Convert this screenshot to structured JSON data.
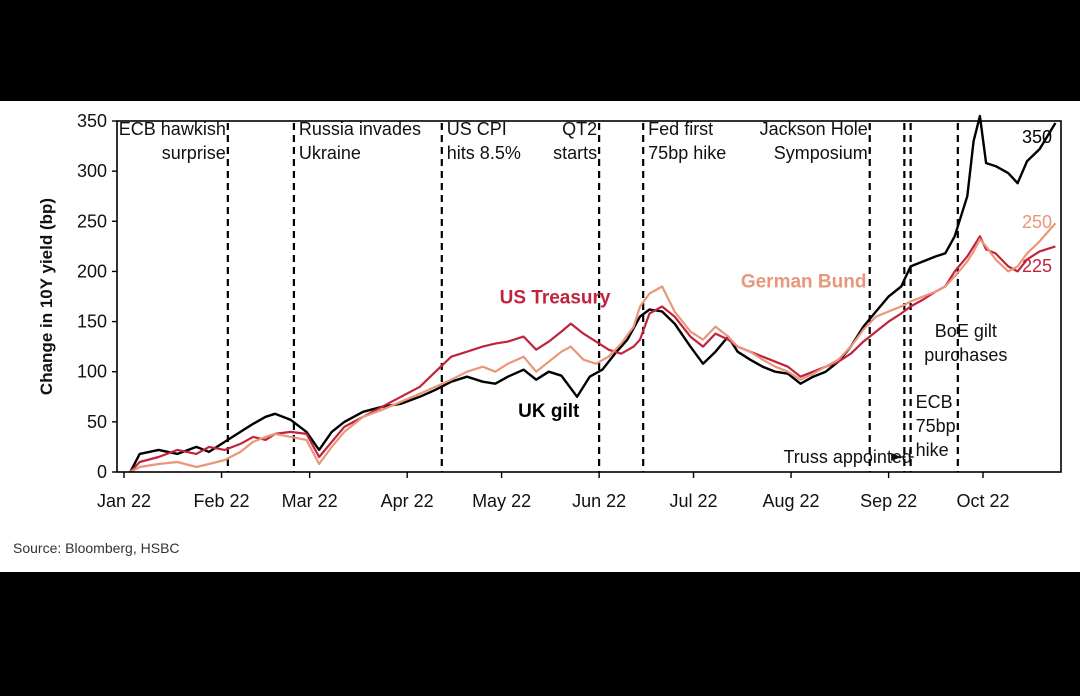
{
  "chart_data": {
    "type": "line",
    "title": "",
    "xlabel": "",
    "ylabel": "Change in 10Y yield (bp)",
    "xlim": [
      "2022-01-01",
      "2022-10-30"
    ],
    "ylim": [
      0,
      350
    ],
    "y_ticks": [
      0,
      50,
      100,
      150,
      200,
      250,
      300,
      350
    ],
    "x_ticks": [
      {
        "date": "2022-01-01",
        "label": "Jan 22"
      },
      {
        "date": "2022-02-01",
        "label": "Feb 22"
      },
      {
        "date": "2022-03-01",
        "label": "Mar 22"
      },
      {
        "date": "2022-04-01",
        "label": "Apr 22"
      },
      {
        "date": "2022-05-01",
        "label": "May 22"
      },
      {
        "date": "2022-06-01",
        "label": "Jun 22"
      },
      {
        "date": "2022-07-01",
        "label": "Jul 22"
      },
      {
        "date": "2022-08-01",
        "label": "Aug 22"
      },
      {
        "date": "2022-09-01",
        "label": "Sep 22"
      },
      {
        "date": "2022-10-01",
        "label": "Oct 22"
      }
    ],
    "grid": false,
    "legend": "inline labels",
    "series": [
      {
        "name": "UK gilt",
        "color": "#000000",
        "end_label": "350",
        "points": [
          [
            "2022-01-03",
            0
          ],
          [
            "2022-01-06",
            18
          ],
          [
            "2022-01-12",
            22
          ],
          [
            "2022-01-18",
            18
          ],
          [
            "2022-01-24",
            25
          ],
          [
            "2022-01-28",
            20
          ],
          [
            "2022-02-02",
            30
          ],
          [
            "2022-02-07",
            40
          ],
          [
            "2022-02-11",
            48
          ],
          [
            "2022-02-15",
            55
          ],
          [
            "2022-02-18",
            58
          ],
          [
            "2022-02-23",
            52
          ],
          [
            "2022-02-28",
            40
          ],
          [
            "2022-03-04",
            22
          ],
          [
            "2022-03-08",
            40
          ],
          [
            "2022-03-12",
            50
          ],
          [
            "2022-03-18",
            60
          ],
          [
            "2022-03-24",
            65
          ],
          [
            "2022-03-30",
            68
          ],
          [
            "2022-04-05",
            75
          ],
          [
            "2022-04-10",
            82
          ],
          [
            "2022-04-15",
            90
          ],
          [
            "2022-04-20",
            95
          ],
          [
            "2022-04-25",
            90
          ],
          [
            "2022-04-29",
            88
          ],
          [
            "2022-05-03",
            95
          ],
          [
            "2022-05-08",
            102
          ],
          [
            "2022-05-12",
            92
          ],
          [
            "2022-05-16",
            100
          ],
          [
            "2022-05-20",
            96
          ],
          [
            "2022-05-25",
            75
          ],
          [
            "2022-05-29",
            95
          ],
          [
            "2022-06-02",
            102
          ],
          [
            "2022-06-06",
            118
          ],
          [
            "2022-06-10",
            132
          ],
          [
            "2022-06-14",
            155
          ],
          [
            "2022-06-17",
            162
          ],
          [
            "2022-06-21",
            160
          ],
          [
            "2022-06-25",
            148
          ],
          [
            "2022-06-30",
            125
          ],
          [
            "2022-07-04",
            108
          ],
          [
            "2022-07-08",
            120
          ],
          [
            "2022-07-12",
            135
          ],
          [
            "2022-07-15",
            120
          ],
          [
            "2022-07-19",
            112
          ],
          [
            "2022-07-23",
            105
          ],
          [
            "2022-07-27",
            100
          ],
          [
            "2022-07-31",
            98
          ],
          [
            "2022-08-04",
            88
          ],
          [
            "2022-08-08",
            95
          ],
          [
            "2022-08-12",
            100
          ],
          [
            "2022-08-16",
            110
          ],
          [
            "2022-08-20",
            125
          ],
          [
            "2022-08-24",
            145
          ],
          [
            "2022-08-28",
            160
          ],
          [
            "2022-09-01",
            175
          ],
          [
            "2022-09-05",
            185
          ],
          [
            "2022-09-08",
            205
          ],
          [
            "2022-09-12",
            210
          ],
          [
            "2022-09-16",
            215
          ],
          [
            "2022-09-19",
            218
          ],
          [
            "2022-09-22",
            235
          ],
          [
            "2022-09-26",
            275
          ],
          [
            "2022-09-28",
            330
          ],
          [
            "2022-09-30",
            355
          ],
          [
            "2022-10-02",
            308
          ],
          [
            "2022-10-05",
            305
          ],
          [
            "2022-10-09",
            298
          ],
          [
            "2022-10-12",
            288
          ],
          [
            "2022-10-15",
            310
          ],
          [
            "2022-10-19",
            322
          ],
          [
            "2022-10-24",
            348
          ]
        ]
      },
      {
        "name": "US Treasury",
        "color": "#c0243c",
        "end_label": "225",
        "points": [
          [
            "2022-01-03",
            0
          ],
          [
            "2022-01-06",
            10
          ],
          [
            "2022-01-12",
            15
          ],
          [
            "2022-01-18",
            22
          ],
          [
            "2022-01-24",
            18
          ],
          [
            "2022-01-28",
            25
          ],
          [
            "2022-02-02",
            22
          ],
          [
            "2022-02-07",
            28
          ],
          [
            "2022-02-11",
            35
          ],
          [
            "2022-02-15",
            32
          ],
          [
            "2022-02-18",
            38
          ],
          [
            "2022-02-23",
            40
          ],
          [
            "2022-02-28",
            38
          ],
          [
            "2022-03-04",
            15
          ],
          [
            "2022-03-08",
            30
          ],
          [
            "2022-03-12",
            45
          ],
          [
            "2022-03-18",
            55
          ],
          [
            "2022-03-24",
            65
          ],
          [
            "2022-03-30",
            75
          ],
          [
            "2022-04-05",
            85
          ],
          [
            "2022-04-10",
            100
          ],
          [
            "2022-04-15",
            115
          ],
          [
            "2022-04-20",
            120
          ],
          [
            "2022-04-25",
            125
          ],
          [
            "2022-04-29",
            128
          ],
          [
            "2022-05-03",
            130
          ],
          [
            "2022-05-08",
            135
          ],
          [
            "2022-05-12",
            122
          ],
          [
            "2022-05-16",
            130
          ],
          [
            "2022-05-20",
            140
          ],
          [
            "2022-05-23",
            148
          ],
          [
            "2022-05-27",
            138
          ],
          [
            "2022-05-31",
            130
          ],
          [
            "2022-06-04",
            122
          ],
          [
            "2022-06-08",
            118
          ],
          [
            "2022-06-12",
            125
          ],
          [
            "2022-06-14",
            132
          ],
          [
            "2022-06-17",
            158
          ],
          [
            "2022-06-21",
            165
          ],
          [
            "2022-06-25",
            155
          ],
          [
            "2022-06-30",
            135
          ],
          [
            "2022-07-04",
            125
          ],
          [
            "2022-07-08",
            138
          ],
          [
            "2022-07-12",
            132
          ],
          [
            "2022-07-15",
            125
          ],
          [
            "2022-07-19",
            120
          ],
          [
            "2022-07-23",
            115
          ],
          [
            "2022-07-27",
            110
          ],
          [
            "2022-07-31",
            105
          ],
          [
            "2022-08-04",
            95
          ],
          [
            "2022-08-08",
            100
          ],
          [
            "2022-08-12",
            105
          ],
          [
            "2022-08-16",
            110
          ],
          [
            "2022-08-20",
            118
          ],
          [
            "2022-08-24",
            130
          ],
          [
            "2022-08-28",
            140
          ],
          [
            "2022-09-01",
            150
          ],
          [
            "2022-09-05",
            158
          ],
          [
            "2022-09-08",
            165
          ],
          [
            "2022-09-12",
            172
          ],
          [
            "2022-09-16",
            180
          ],
          [
            "2022-09-19",
            185
          ],
          [
            "2022-09-22",
            200
          ],
          [
            "2022-09-26",
            215
          ],
          [
            "2022-09-28",
            225
          ],
          [
            "2022-09-30",
            235
          ],
          [
            "2022-10-02",
            222
          ],
          [
            "2022-10-05",
            218
          ],
          [
            "2022-10-09",
            205
          ],
          [
            "2022-10-12",
            200
          ],
          [
            "2022-10-15",
            212
          ],
          [
            "2022-10-19",
            220
          ],
          [
            "2022-10-24",
            225
          ]
        ]
      },
      {
        "name": "German Bund",
        "color": "#e9967a",
        "end_label": "250",
        "points": [
          [
            "2022-01-03",
            0
          ],
          [
            "2022-01-06",
            5
          ],
          [
            "2022-01-12",
            8
          ],
          [
            "2022-01-18",
            10
          ],
          [
            "2022-01-24",
            5
          ],
          [
            "2022-01-28",
            8
          ],
          [
            "2022-02-02",
            12
          ],
          [
            "2022-02-07",
            20
          ],
          [
            "2022-02-11",
            30
          ],
          [
            "2022-02-15",
            35
          ],
          [
            "2022-02-18",
            38
          ],
          [
            "2022-02-23",
            35
          ],
          [
            "2022-02-28",
            32
          ],
          [
            "2022-03-04",
            8
          ],
          [
            "2022-03-08",
            25
          ],
          [
            "2022-03-12",
            40
          ],
          [
            "2022-03-18",
            55
          ],
          [
            "2022-03-24",
            62
          ],
          [
            "2022-03-30",
            70
          ],
          [
            "2022-04-05",
            78
          ],
          [
            "2022-04-10",
            85
          ],
          [
            "2022-04-15",
            92
          ],
          [
            "2022-04-20",
            100
          ],
          [
            "2022-04-25",
            105
          ],
          [
            "2022-04-29",
            100
          ],
          [
            "2022-05-03",
            108
          ],
          [
            "2022-05-08",
            115
          ],
          [
            "2022-05-12",
            100
          ],
          [
            "2022-05-16",
            110
          ],
          [
            "2022-05-20",
            120
          ],
          [
            "2022-05-23",
            125
          ],
          [
            "2022-05-27",
            112
          ],
          [
            "2022-05-31",
            108
          ],
          [
            "2022-06-04",
            115
          ],
          [
            "2022-06-08",
            128
          ],
          [
            "2022-06-12",
            145
          ],
          [
            "2022-06-14",
            165
          ],
          [
            "2022-06-17",
            178
          ],
          [
            "2022-06-21",
            185
          ],
          [
            "2022-06-25",
            160
          ],
          [
            "2022-06-30",
            140
          ],
          [
            "2022-07-04",
            132
          ],
          [
            "2022-07-08",
            145
          ],
          [
            "2022-07-12",
            135
          ],
          [
            "2022-07-15",
            125
          ],
          [
            "2022-07-19",
            120
          ],
          [
            "2022-07-23",
            112
          ],
          [
            "2022-07-27",
            105
          ],
          [
            "2022-07-31",
            100
          ],
          [
            "2022-08-04",
            92
          ],
          [
            "2022-08-08",
            98
          ],
          [
            "2022-08-12",
            105
          ],
          [
            "2022-08-16",
            112
          ],
          [
            "2022-08-20",
            125
          ],
          [
            "2022-08-24",
            142
          ],
          [
            "2022-08-28",
            155
          ],
          [
            "2022-09-01",
            160
          ],
          [
            "2022-09-05",
            165
          ],
          [
            "2022-09-08",
            170
          ],
          [
            "2022-09-12",
            175
          ],
          [
            "2022-09-16",
            180
          ],
          [
            "2022-09-19",
            185
          ],
          [
            "2022-09-22",
            195
          ],
          [
            "2022-09-26",
            210
          ],
          [
            "2022-09-28",
            220
          ],
          [
            "2022-09-30",
            232
          ],
          [
            "2022-10-02",
            225
          ],
          [
            "2022-10-05",
            212
          ],
          [
            "2022-10-09",
            200
          ],
          [
            "2022-10-12",
            205
          ],
          [
            "2022-10-15",
            218
          ],
          [
            "2022-10-19",
            230
          ],
          [
            "2022-10-24",
            248
          ]
        ]
      }
    ],
    "series_labels": [
      {
        "text": "US Treasury",
        "series": "US Treasury",
        "at": [
          "2022-05-18",
          168
        ]
      },
      {
        "text": "German Bund",
        "series": "German Bund",
        "at": [
          "2022-08-05",
          184
        ]
      },
      {
        "text": "UK gilt",
        "series": "UK gilt",
        "at": [
          "2022-05-16",
          55
        ]
      }
    ],
    "events": [
      {
        "date": "2022-02-03",
        "lines": [
          "ECB hawkish",
          "surprise"
        ],
        "label_anchor": "end",
        "label_y": "top"
      },
      {
        "date": "2022-02-24",
        "lines": [
          "Russia invades",
          "Ukraine"
        ],
        "label_anchor": "start",
        "label_y": "top"
      },
      {
        "date": "2022-04-12",
        "lines": [
          "US CPI",
          "hits 8.5%"
        ],
        "label_anchor": "start",
        "label_y": "top"
      },
      {
        "date": "2022-06-01",
        "lines": [
          "QT2",
          "starts"
        ],
        "label_anchor": "end",
        "label_y": "top"
      },
      {
        "date": "2022-06-15",
        "lines": [
          "Fed first",
          "75bp hike"
        ],
        "label_anchor": "start",
        "label_y": "top"
      },
      {
        "date": "2022-08-26",
        "lines": [
          "Jackson Hole",
          "Symposium"
        ],
        "label_anchor": "end",
        "label_y": "top"
      },
      {
        "date": "2022-09-06",
        "lines": [],
        "label_anchor": "none",
        "label_y": "top"
      },
      {
        "date": "2022-09-08",
        "lines": [
          "ECB",
          "75bp",
          "hike"
        ],
        "label_anchor": "start",
        "label_y": "bottom"
      },
      {
        "date": "2022-09-23",
        "lines": [
          "BoE gilt",
          "purchases"
        ],
        "label_anchor": "mid",
        "label_y": "middle"
      }
    ],
    "annotations": [
      {
        "text": "Truss appointed",
        "at": [
          "2022-08-19",
          15
        ],
        "arrow_to": "2022-09-05"
      }
    ]
  },
  "source": "Source: Bloomberg, HSBC"
}
